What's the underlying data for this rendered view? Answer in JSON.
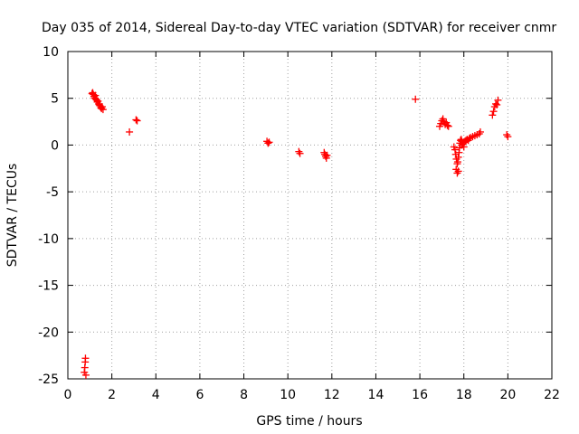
{
  "chart_data": {
    "type": "scatter",
    "title": "Day 035 of 2014, Sidereal Day-to-day VTEC variation (SDTVAR) for receiver cnmr",
    "xlabel": "GPS time / hours",
    "ylabel": "SDTVAR / TECUs",
    "xlim": [
      0,
      22
    ],
    "ylim": [
      -25,
      10
    ],
    "xticks": [
      0,
      2,
      4,
      6,
      8,
      10,
      12,
      14,
      16,
      18,
      20,
      22
    ],
    "yticks": [
      -25,
      -20,
      -15,
      -10,
      -5,
      0,
      5,
      10
    ],
    "grid": true,
    "marker": "plus",
    "color": "#ff0000",
    "series": [
      {
        "name": "SDTVAR",
        "x": [
          0.75,
          0.77,
          0.79,
          0.8,
          0.82,
          1.1,
          1.13,
          1.16,
          1.19,
          1.22,
          1.25,
          1.28,
          1.31,
          1.34,
          1.37,
          1.4,
          1.43,
          1.46,
          1.5,
          1.53,
          1.56,
          1.6,
          2.8,
          3.1,
          3.15,
          9.05,
          9.1,
          9.15,
          10.5,
          10.55,
          11.65,
          11.68,
          11.72,
          11.75,
          11.78,
          15.8,
          16.9,
          16.95,
          17.0,
          17.05,
          17.1,
          17.15,
          17.2,
          17.25,
          17.3,
          17.55,
          17.6,
          17.63,
          17.66,
          17.7,
          17.72,
          17.75,
          17.78,
          17.8,
          17.82,
          17.85,
          17.88,
          17.9,
          17.95,
          18.0,
          17.65,
          17.7,
          17.75,
          17.9,
          18.0,
          18.05,
          18.1,
          18.15,
          18.2,
          18.25,
          18.3,
          18.4,
          18.5,
          18.6,
          18.7,
          18.75,
          19.3,
          19.35,
          19.4,
          19.45,
          19.5,
          19.55,
          19.95,
          20.0
        ],
        "y": [
          -24.3,
          -23.8,
          -23.2,
          -22.8,
          -24.6,
          5.5,
          5.6,
          5.4,
          5.2,
          5.0,
          5.3,
          4.9,
          4.8,
          4.6,
          4.7,
          4.4,
          4.3,
          4.2,
          4.0,
          3.9,
          4.1,
          3.8,
          1.4,
          2.7,
          2.6,
          0.4,
          0.2,
          0.3,
          -0.7,
          -0.9,
          -0.8,
          -1.0,
          -1.2,
          -1.4,
          -1.1,
          4.9,
          2.0,
          2.3,
          2.6,
          2.8,
          2.5,
          2.2,
          2.4,
          2.1,
          2.0,
          -0.2,
          -0.5,
          -1.0,
          -1.5,
          -2.0,
          -1.8,
          -1.3,
          -0.8,
          -0.3,
          0.2,
          0.5,
          0.6,
          0.4,
          0.1,
          -0.2,
          -2.6,
          -3.0,
          -2.8,
          0.0,
          0.3,
          0.4,
          0.5,
          0.6,
          0.5,
          0.7,
          0.8,
          0.9,
          1.0,
          1.1,
          1.2,
          1.4,
          3.2,
          3.6,
          4.1,
          4.4,
          4.3,
          4.8,
          1.1,
          0.9
        ]
      }
    ]
  }
}
